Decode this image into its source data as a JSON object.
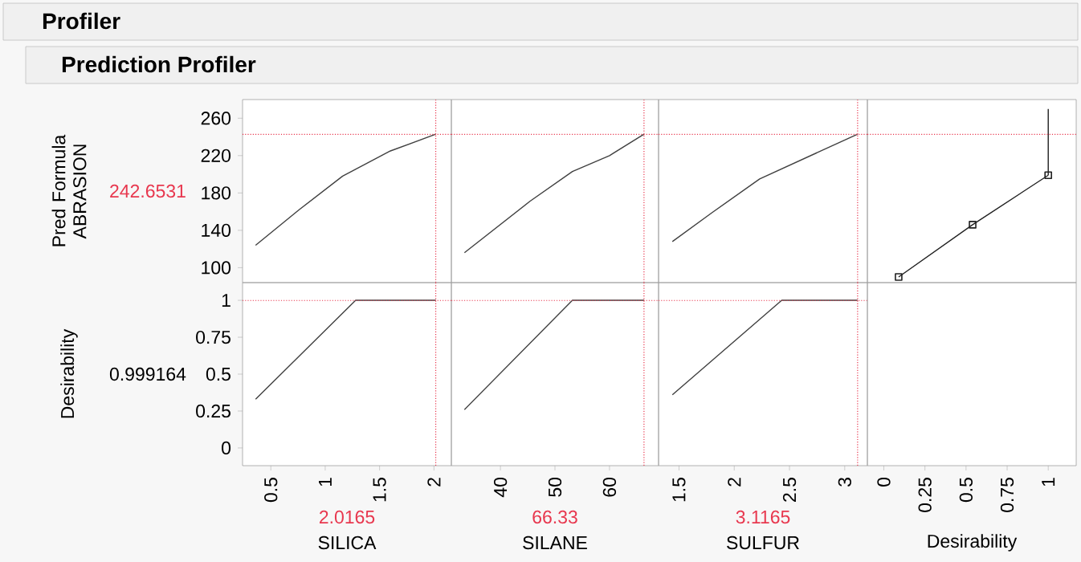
{
  "chart_data": [
    {
      "type": "line",
      "title": "Profiler",
      "subtitle": "Prediction Profiler",
      "ylabel": "Pred Formula ABRASION",
      "xlim": [
        0.24,
        2.16
      ],
      "ylim": [
        84,
        280
      ],
      "yticks": [
        100,
        140,
        180,
        220,
        260
      ],
      "tick_labels": "y",
      "series": [
        {
          "color": "#404040",
          "x": [
            0.36,
            0.76,
            1.16,
            1.6,
            2.0165
          ],
          "values": [
            124,
            162,
            198,
            225,
            243
          ]
        }
      ],
      "ref_lines": [
        {
          "axis": "y",
          "value": 242.6531,
          "label": "242.6531",
          "color": "#e8384f",
          "line_style": "dotted"
        },
        {
          "axis": "x",
          "value": 2.0165,
          "color": "#e8384f",
          "line_style": "dotted"
        }
      ]
    },
    {
      "type": "line",
      "xlim": [
        31,
        69
      ],
      "ylim": [
        84,
        280
      ],
      "tick_labels": false,
      "series": [
        {
          "color": "#404040",
          "x": [
            33.4,
            45.4,
            53.2,
            60,
            66.33
          ],
          "values": [
            116,
            171,
            203,
            220,
            243
          ]
        }
      ],
      "ref_lines": [
        {
          "axis": "y",
          "value": 242.6531,
          "color": "#e8384f",
          "line_style": "dotted"
        },
        {
          "axis": "x",
          "value": 66.33,
          "color": "#e8384f",
          "line_style": "dotted"
        }
      ]
    },
    {
      "type": "line",
      "xlim": [
        1.315,
        3.205
      ],
      "ylim": [
        84,
        280
      ],
      "tick_labels": false,
      "series": [
        {
          "color": "#404040",
          "x": [
            1.44,
            1.8,
            2.23,
            3.1165
          ],
          "values": [
            128,
            159,
            195,
            243
          ]
        }
      ],
      "ref_lines": [
        {
          "axis": "y",
          "value": 242.6531,
          "color": "#e8384f",
          "line_style": "dotted"
        },
        {
          "axis": "x",
          "value": 3.1165,
          "color": "#e8384f",
          "line_style": "dotted"
        }
      ]
    },
    {
      "type": "line",
      "xlim": [
        -0.1,
        1.17
      ],
      "ylim": [
        84,
        280
      ],
      "tick_labels": false,
      "series": [
        {
          "color": "#202020",
          "x": [
            0.09,
            0.54,
            1
          ],
          "values": [
            90,
            146,
            199
          ],
          "marker": "square"
        },
        {
          "color": "#202020",
          "x": [
            1,
            1
          ],
          "values": [
            199,
            270
          ],
          "marker": "none"
        }
      ],
      "ref_lines": [
        {
          "axis": "y",
          "value": 242.6531,
          "color": "#e8384f",
          "line_style": "dotted"
        }
      ]
    },
    {
      "type": "line",
      "ylabel": "Desirability",
      "xlabel": "SILICA",
      "xlim": [
        0.24,
        2.16
      ],
      "ylim": [
        -0.12,
        1.12
      ],
      "xticks": [
        0.5,
        1,
        1.5,
        2
      ],
      "yticks": [
        0,
        0.25,
        0.5,
        0.75,
        1
      ],
      "annotations": [
        "0.999164"
      ],
      "series": [
        {
          "color": "#404040",
          "x": [
            0.36,
            1.28,
            2.0165
          ],
          "values": [
            0.33,
            1,
            1
          ]
        }
      ],
      "ref_lines": [
        {
          "axis": "y",
          "value": 0.999164,
          "color": "#e8384f",
          "line_style": "dotted"
        },
        {
          "axis": "x",
          "value": 2.0165,
          "label": "2.0165",
          "color": "#e8384f",
          "line_style": "dotted"
        }
      ]
    },
    {
      "type": "line",
      "xlabel": "SILANE",
      "xlim": [
        31,
        69
      ],
      "ylim": [
        -0.12,
        1.12
      ],
      "xticks": [
        40,
        50,
        60
      ],
      "tick_labels": "x",
      "series": [
        {
          "color": "#404040",
          "x": [
            33.4,
            53.2,
            66.33
          ],
          "values": [
            0.26,
            1,
            1
          ]
        }
      ],
      "ref_lines": [
        {
          "axis": "y",
          "value": 0.999164,
          "color": "#e8384f",
          "line_style": "dotted"
        },
        {
          "axis": "x",
          "value": 66.33,
          "label": "66.33",
          "color": "#e8384f",
          "line_style": "dotted"
        }
      ]
    },
    {
      "type": "line",
      "xlabel": "SULFUR",
      "xlim": [
        1.315,
        3.205
      ],
      "ylim": [
        -0.12,
        1.12
      ],
      "xticks": [
        1.5,
        2,
        2.5,
        3
      ],
      "tick_labels": "x",
      "series": [
        {
          "color": "#404040",
          "x": [
            1.44,
            2.43,
            3.1165
          ],
          "values": [
            0.36,
            1,
            1
          ]
        }
      ],
      "ref_lines": [
        {
          "axis": "y",
          "value": 0.999164,
          "color": "#e8384f",
          "line_style": "dotted"
        },
        {
          "axis": "x",
          "value": 3.1165,
          "label": "3.1165",
          "color": "#e8384f",
          "line_style": "dotted"
        }
      ]
    },
    {
      "type": "line",
      "xlabel": "Desirability",
      "xlim": [
        -0.1,
        1.17
      ],
      "ylim": [
        -0.12,
        1.12
      ],
      "xticks": [
        0,
        0.25,
        0.5,
        0.75,
        1
      ],
      "tick_labels": "x"
    }
  ]
}
